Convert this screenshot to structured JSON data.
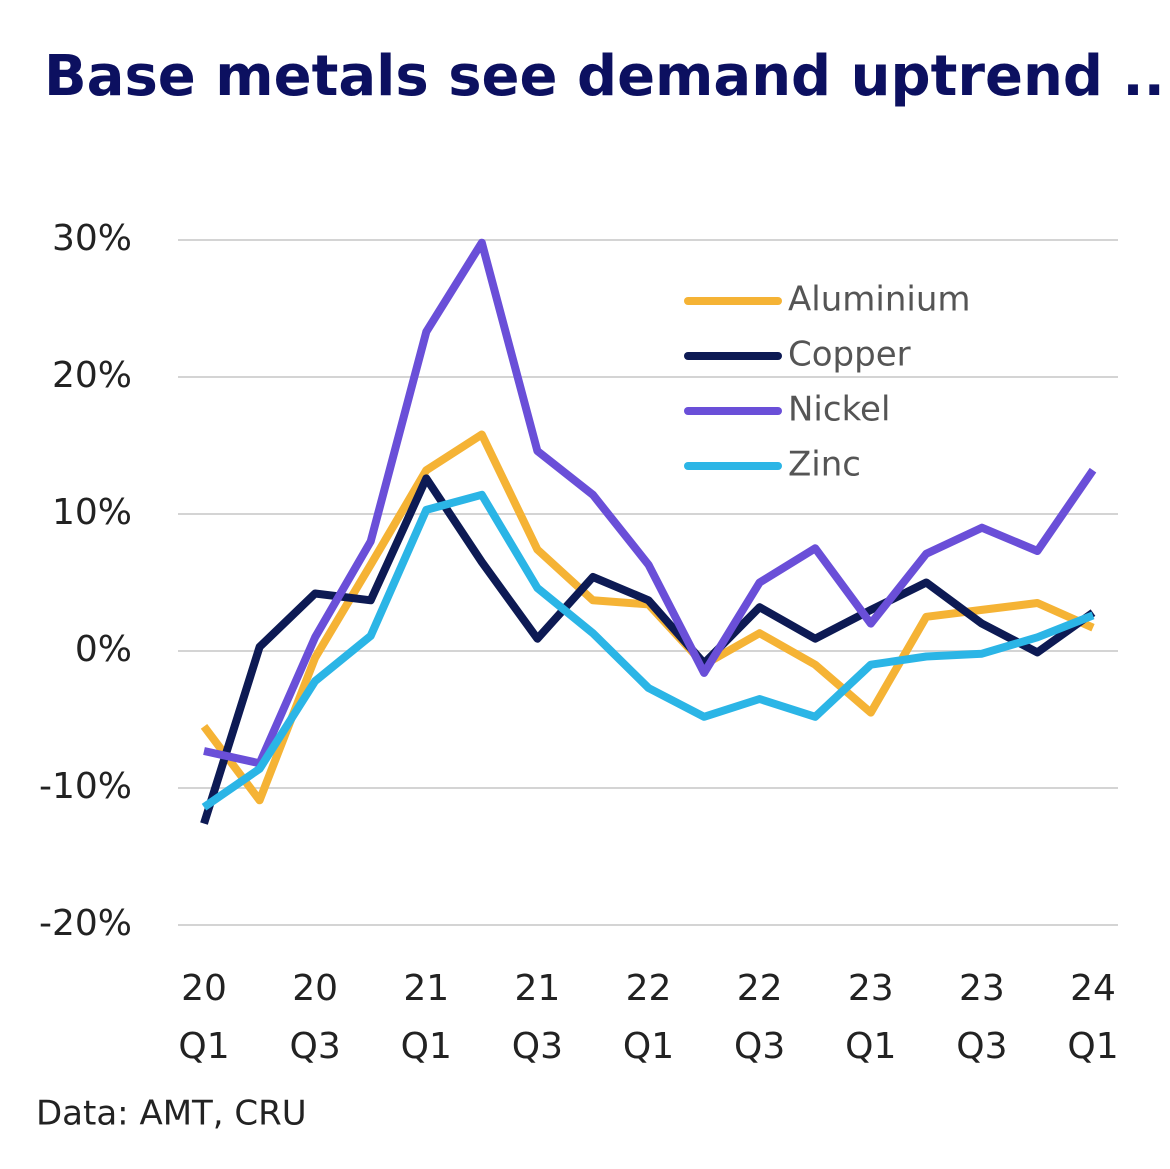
{
  "chart_data": {
    "type": "line",
    "title": "Base metals see demand uptrend ...",
    "source": "Data: AMT, CRU",
    "categories": [
      "20 Q1",
      null,
      "20 Q3",
      null,
      "21 Q1",
      null,
      "21 Q3",
      null,
      "22 Q1",
      null,
      "22 Q3",
      null,
      "23 Q1",
      null,
      "23 Q3",
      null,
      "24 Q1"
    ],
    "series": [
      {
        "name": "Aluminium",
        "color": "#f5b335",
        "values": [
          -5.5,
          -10.9,
          -0.5,
          6.3,
          13.2,
          15.8,
          7.4,
          3.7,
          3.4,
          -1.0,
          1.3,
          -1.0,
          -4.5,
          2.5,
          3.0,
          3.5,
          1.7
        ]
      },
      {
        "name": "Copper",
        "color": "#0d1a54",
        "values": [
          -12.6,
          0.3,
          4.2,
          3.7,
          12.6,
          6.5,
          0.9,
          5.4,
          3.7,
          -0.9,
          3.2,
          0.9,
          3.0,
          5.0,
          2.0,
          -0.1,
          2.8
        ]
      },
      {
        "name": "Nickel",
        "color": "#6a4fd8",
        "values": [
          -7.3,
          -8.2,
          1.0,
          8.0,
          23.3,
          29.8,
          14.6,
          11.4,
          6.3,
          -1.6,
          5.0,
          7.5,
          2.0,
          7.1,
          9.0,
          7.3,
          13.2
        ]
      },
      {
        "name": "Zinc",
        "color": "#2bb5e6",
        "values": [
          -11.4,
          -8.6,
          -2.2,
          1.1,
          10.3,
          11.4,
          4.6,
          1.3,
          -2.7,
          -4.8,
          -3.5,
          -4.8,
          -1.0,
          -0.4,
          -0.2,
          1.0,
          2.6
        ]
      }
    ],
    "ylim": [
      -20,
      30
    ],
    "yticks": [
      {
        "value": -20,
        "label": "-20%"
      },
      {
        "value": -10,
        "label": "-10%"
      },
      {
        "value": 0,
        "label": "0%"
      },
      {
        "value": 10,
        "label": "10%"
      },
      {
        "value": 20,
        "label": "20%"
      },
      {
        "value": 30,
        "label": "30%"
      }
    ],
    "grid": true,
    "legend": "upper right"
  }
}
